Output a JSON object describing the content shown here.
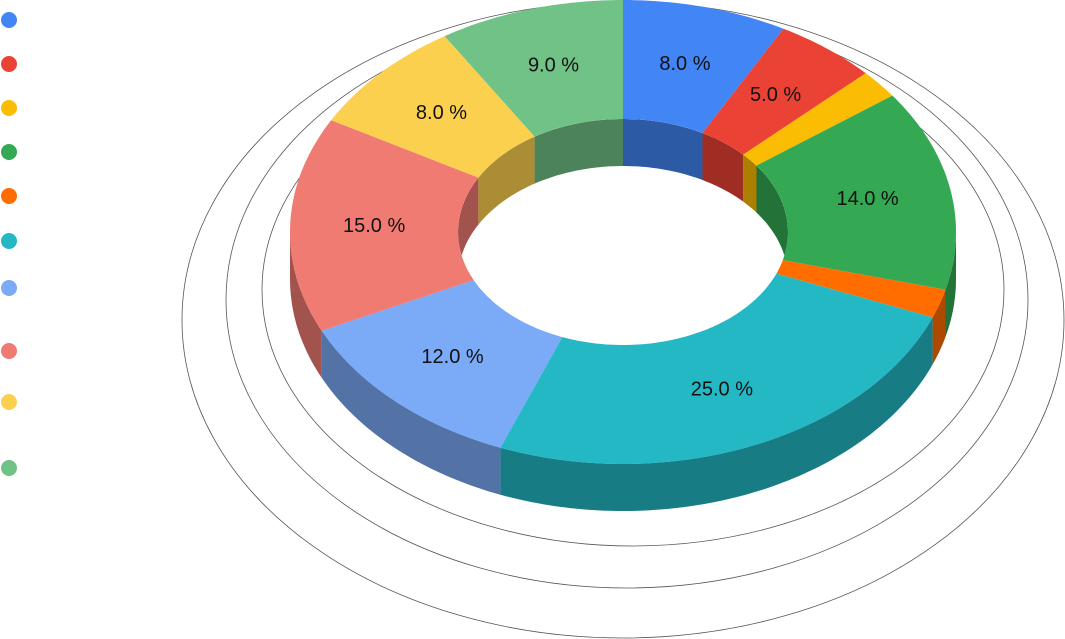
{
  "chart_data": {
    "type": "donut3d",
    "values": [
      8,
      5,
      2,
      14,
      2,
      25,
      12,
      15,
      8,
      9
    ],
    "value_labels": [
      "8.0 %",
      "5.0 %",
      null,
      "14.0 %",
      null,
      "25.0 %",
      "12.0 %",
      "15.0 %",
      "8.0 %",
      "9.0 %"
    ],
    "colors": [
      "#4285f4",
      "#ea4335",
      "#fbbc04",
      "#34a853",
      "#ff6d01",
      "#24b7c4",
      "#7baaf7",
      "#f07b72",
      "#fcd04f",
      "#71c287"
    ]
  }
}
